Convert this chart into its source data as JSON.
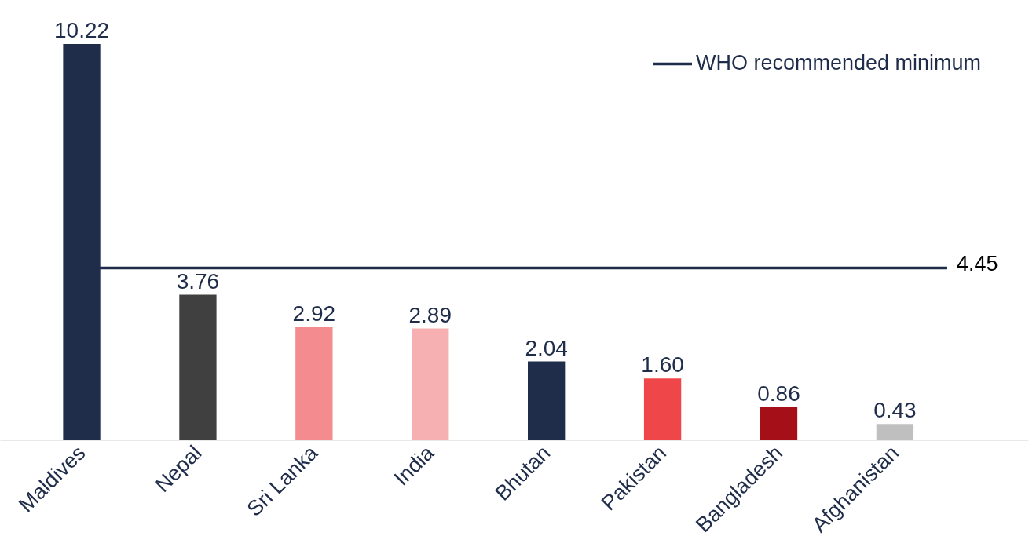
{
  "chart_data": {
    "type": "bar",
    "categories": [
      "Maldives",
      "Nepal",
      "Sri Lanka",
      "India",
      "Bhutan",
      "Pakistan",
      "Bangladesh",
      "Afghanistan"
    ],
    "values": [
      10.22,
      3.76,
      2.92,
      2.89,
      2.04,
      1.6,
      0.86,
      0.43
    ],
    "value_labels": [
      "10.22",
      "3.76",
      "2.92",
      "2.89",
      "2.04",
      "1.60",
      "0.86",
      "0.43"
    ],
    "colors": [
      "#1f2d4a",
      "#404040",
      "#f48c8f",
      "#f6b0b2",
      "#1f2d4a",
      "#ef4649",
      "#a50f17",
      "#bfbfbf"
    ],
    "ref_lines": [
      {
        "axis": "y",
        "value": 4.45,
        "label": "WHO recommended minimum",
        "color": "#1f2d4a",
        "line_style": "solid"
      }
    ],
    "annotations": [
      "4.45"
    ],
    "legend": "top right",
    "grid": false
  }
}
